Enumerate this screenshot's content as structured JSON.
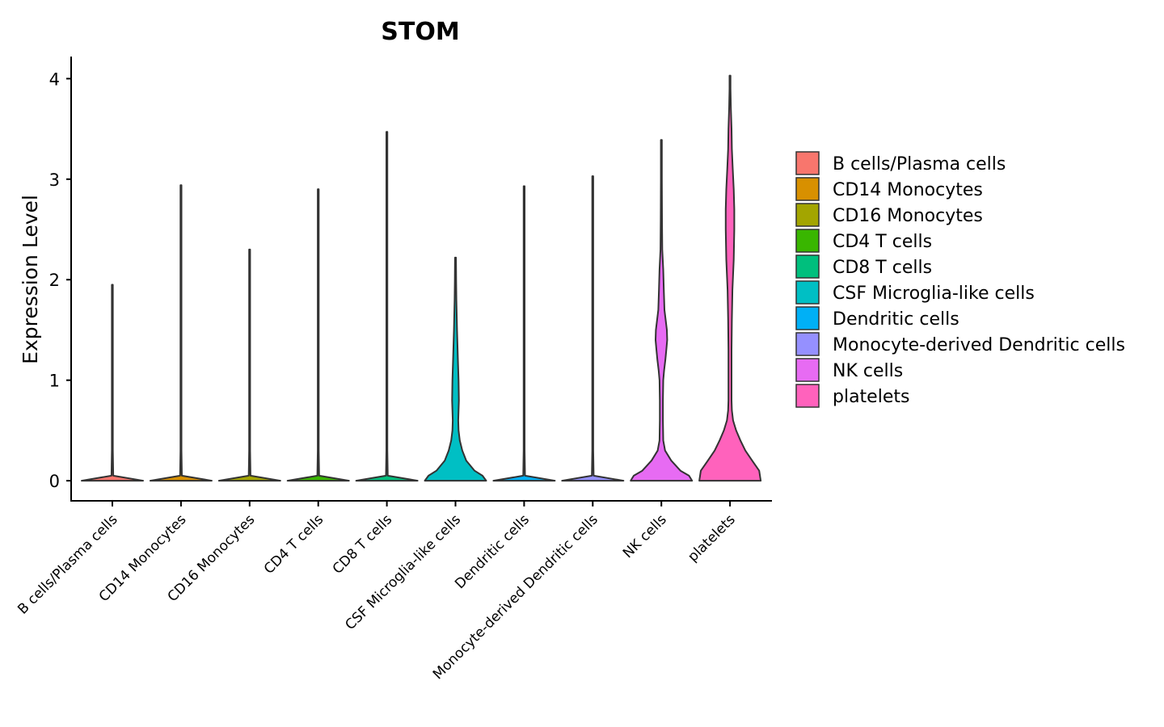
{
  "chart_data": {
    "type": "violin",
    "title": "STOM",
    "xlabel": "",
    "ylabel": "Expression Level",
    "ylim": [
      -0.2,
      4.22
    ],
    "yticks": [
      0,
      1,
      2,
      3,
      4
    ],
    "grid": false,
    "legend_position": "right",
    "categories": [
      "B cells/Plasma cells",
      "CD14 Monocytes",
      "CD16 Monocytes",
      "CD4 T cells",
      "CD8 T cells",
      "CSF Microglia-like cells",
      "Dendritic cells",
      "Monocyte-derived Dendritic cells",
      "NK cells",
      "platelets"
    ],
    "colors": [
      "#F8766D",
      "#D89000",
      "#A3A500",
      "#39B600",
      "#00BF7D",
      "#00BFC4",
      "#00B0F6",
      "#9590FF",
      "#E76BF3",
      "#FF62BC"
    ],
    "max_values": [
      1.95,
      2.94,
      2.3,
      2.9,
      3.47,
      2.22,
      2.93,
      3.03,
      3.39,
      4.03
    ],
    "density_profiles": [
      {
        "y": [
          0,
          0.05,
          0.3,
          1.95
        ],
        "w": [
          1.0,
          0.03,
          0.01,
          0.01
        ]
      },
      {
        "y": [
          0,
          0.05,
          0.3,
          2.94
        ],
        "w": [
          1.0,
          0.03,
          0.01,
          0.01
        ]
      },
      {
        "y": [
          0,
          0.05,
          0.3,
          2.3
        ],
        "w": [
          1.0,
          0.03,
          0.01,
          0.01
        ]
      },
      {
        "y": [
          0,
          0.05,
          0.3,
          2.9
        ],
        "w": [
          1.0,
          0.03,
          0.01,
          0.01
        ]
      },
      {
        "y": [
          0,
          0.05,
          0.3,
          3.47
        ],
        "w": [
          1.0,
          0.03,
          0.01,
          0.01
        ]
      },
      {
        "y": [
          0,
          0.05,
          0.1,
          0.2,
          0.3,
          0.4,
          0.5,
          0.6,
          0.7,
          0.8,
          1.0,
          1.2,
          1.5,
          1.8,
          2.0,
          2.22
        ],
        "w": [
          1.0,
          0.88,
          0.62,
          0.35,
          0.22,
          0.14,
          0.1,
          0.09,
          0.1,
          0.11,
          0.1,
          0.08,
          0.05,
          0.03,
          0.02,
          0.0
        ]
      },
      {
        "y": [
          0,
          0.05,
          0.3,
          2.93
        ],
        "w": [
          1.0,
          0.03,
          0.01,
          0.01
        ]
      },
      {
        "y": [
          0,
          0.05,
          0.3,
          3.03
        ],
        "w": [
          1.0,
          0.03,
          0.01,
          0.01
        ]
      },
      {
        "y": [
          0,
          0.05,
          0.1,
          0.2,
          0.3,
          0.4,
          0.6,
          0.8,
          1.0,
          1.1,
          1.2,
          1.3,
          1.4,
          1.5,
          1.6,
          1.7,
          1.9,
          2.1,
          2.3,
          2.6,
          3.0,
          3.39
        ],
        "w": [
          1.0,
          0.9,
          0.62,
          0.32,
          0.12,
          0.06,
          0.05,
          0.05,
          0.06,
          0.09,
          0.13,
          0.16,
          0.19,
          0.18,
          0.14,
          0.1,
          0.08,
          0.06,
          0.03,
          0.02,
          0.01,
          0.0
        ]
      },
      {
        "y": [
          0,
          0.1,
          0.2,
          0.3,
          0.4,
          0.5,
          0.6,
          0.7,
          0.8,
          1.0,
          1.3,
          1.6,
          1.9,
          2.2,
          2.5,
          2.7,
          2.9,
          3.1,
          3.3,
          3.5,
          3.7,
          3.9,
          4.03
        ],
        "w": [
          1.0,
          0.95,
          0.72,
          0.5,
          0.34,
          0.2,
          0.1,
          0.06,
          0.05,
          0.05,
          0.05,
          0.06,
          0.08,
          0.12,
          0.14,
          0.14,
          0.12,
          0.09,
          0.06,
          0.05,
          0.03,
          0.01,
          0.0
        ]
      }
    ]
  }
}
